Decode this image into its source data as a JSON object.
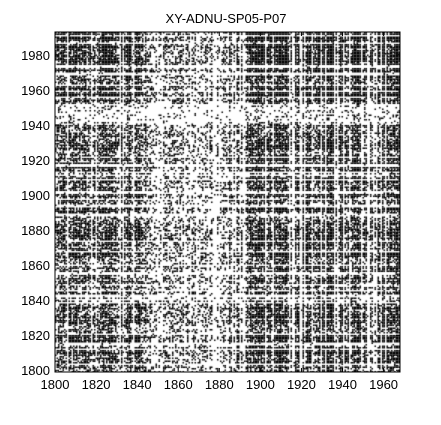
{
  "chart_data": {
    "type": "heatmap",
    "title": "XY-ADNU-SP05-P07",
    "xlabel": "",
    "ylabel": "",
    "xlim": [
      1800,
      1968
    ],
    "ylim": [
      1799,
      1993
    ],
    "x_ticks": [
      1800,
      1820,
      1840,
      1860,
      1880,
      1900,
      1920,
      1940,
      1960
    ],
    "y_ticks": [
      1800,
      1820,
      1840,
      1860,
      1880,
      1900,
      1920,
      1940,
      1960,
      1980
    ],
    "cell_values": "binary (black = 1, white = 0)",
    "colors": {
      "on": "#000000",
      "off": "#ffffff",
      "frame": "#000000"
    },
    "grid": false
  }
}
